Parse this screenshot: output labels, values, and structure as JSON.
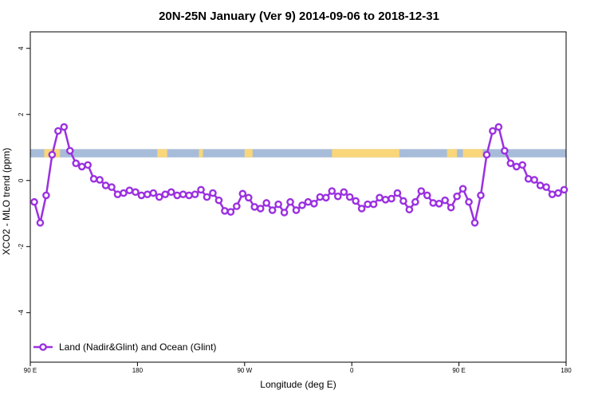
{
  "chart_data": {
    "type": "line",
    "title": "20N-25N January (Ver 9)   2014-09-06 to 2018-12-31",
    "xlabel": "Longitude (deg E)",
    "ylabel": "XCO2 - MLO trend (ppm)",
    "xlim": [
      -90,
      180
    ],
    "ylim": [
      -5.5,
      4.5
    ],
    "x_ticks": [
      {
        "value": -90,
        "label": "90 E"
      },
      {
        "value": -36,
        "label": "180"
      },
      {
        "value": 18,
        "label": "90 W"
      },
      {
        "value": 72,
        "label": "0"
      },
      {
        "value": 126,
        "label": "90 E"
      },
      {
        "value": 180,
        "label": "180"
      }
    ],
    "y_ticks": [
      {
        "value": -4,
        "label": "-4"
      },
      {
        "value": -2,
        "label": "-2"
      },
      {
        "value": 0,
        "label": "0"
      },
      {
        "value": 2,
        "label": "2"
      },
      {
        "value": 4,
        "label": "4"
      }
    ],
    "land_ocean_strip": {
      "y_range": [
        0.7,
        0.95
      ],
      "ocean_color": "#a7bcd9",
      "land_color": "#f9d67a",
      "land_segments": [
        [
          -83,
          -75
        ],
        [
          -26,
          -21
        ],
        [
          -5,
          -3
        ],
        [
          18,
          22
        ],
        [
          62,
          96
        ],
        [
          120,
          125
        ],
        [
          128,
          138
        ]
      ]
    },
    "series": [
      {
        "name": "Land (Nadir&Glint) and Ocean (Glint)",
        "color": "#9b30e0",
        "x": [
          -88,
          -85,
          -82,
          -79,
          -76,
          -73,
          -70,
          -67,
          -64,
          -61,
          -58,
          -55,
          -52,
          -49,
          -46,
          -43,
          -40,
          -37,
          -34,
          -31,
          -28,
          -25,
          -22,
          -19,
          -16,
          -13,
          -10,
          -7,
          -4,
          -1,
          2,
          5,
          8,
          11,
          14,
          17,
          20,
          23,
          26,
          29,
          32,
          35,
          38,
          41,
          44,
          47,
          50,
          53,
          56,
          59,
          62,
          65,
          68,
          71,
          74,
          77,
          80,
          83,
          86,
          89,
          92,
          95,
          98,
          101,
          104,
          107,
          110,
          113,
          116,
          119,
          122,
          125,
          128,
          131,
          134,
          137,
          140,
          143,
          146,
          149,
          152,
          155,
          158,
          161,
          164,
          167,
          170,
          173,
          176,
          179
        ],
        "y": [
          -0.65,
          -1.28,
          -0.45,
          0.78,
          1.5,
          1.62,
          0.9,
          0.52,
          0.42,
          0.47,
          0.05,
          0.02,
          -0.15,
          -0.2,
          -0.42,
          -0.38,
          -0.3,
          -0.35,
          -0.45,
          -0.42,
          -0.38,
          -0.5,
          -0.42,
          -0.35,
          -0.45,
          -0.42,
          -0.45,
          -0.42,
          -0.28,
          -0.5,
          -0.38,
          -0.6,
          -0.92,
          -0.95,
          -0.78,
          -0.4,
          -0.52,
          -0.8,
          -0.85,
          -0.68,
          -0.9,
          -0.72,
          -0.97,
          -0.65,
          -0.9,
          -0.75,
          -0.65,
          -0.7,
          -0.5,
          -0.52,
          -0.32,
          -0.48,
          -0.35,
          -0.5,
          -0.62,
          -0.85,
          -0.72,
          -0.72,
          -0.52,
          -0.58,
          -0.55,
          -0.38,
          -0.62,
          -0.88,
          -0.65,
          -0.32,
          -0.45,
          -0.68,
          -0.7,
          -0.6,
          -0.82,
          -0.48,
          -0.25,
          -0.65,
          -1.28,
          -0.45,
          0.78,
          1.5,
          1.62,
          0.9,
          0.52,
          0.42,
          0.47,
          0.05,
          0.02,
          -0.15,
          -0.2,
          -0.42,
          -0.38,
          -0.28
        ]
      }
    ],
    "legend_position": "bottom-left",
    "grid": false
  }
}
